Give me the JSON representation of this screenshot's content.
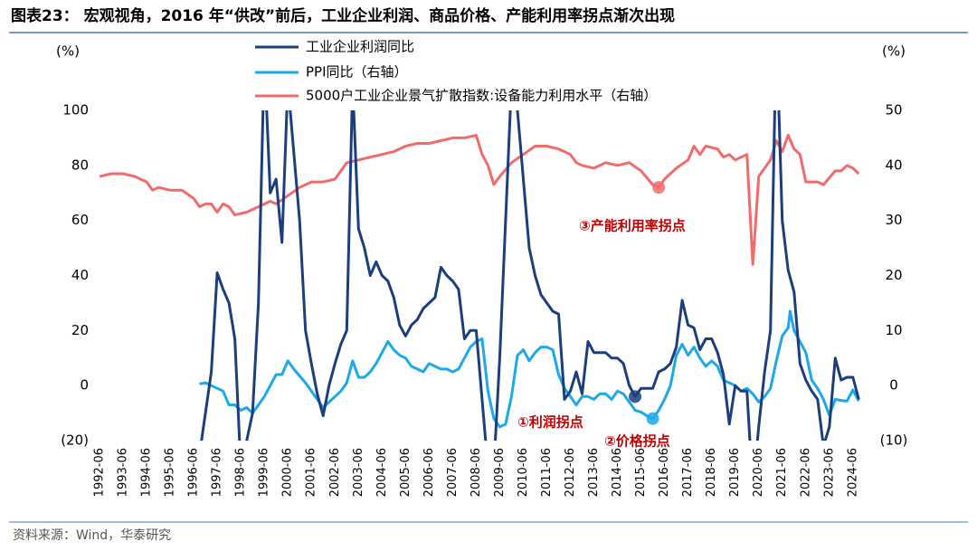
{
  "chart_data": {
    "type": "line",
    "title": "图表23： 宏观视角，2016 年“供改”前后，工业企业利润、商品价格、产能利用率拐点渐次出现",
    "source": "资料来源：Wind，华泰研究",
    "y_label": "(%)",
    "y2_label": "(%)",
    "xlim": [
      "1992-06",
      "2025-01"
    ],
    "xticks": [
      "1992-06",
      "1993-06",
      "1994-06",
      "1995-06",
      "1996-06",
      "1997-06",
      "1998-06",
      "1999-06",
      "2000-06",
      "2001-06",
      "2002-06",
      "2003-06",
      "2004-06",
      "2005-06",
      "2006-06",
      "2007-06",
      "2008-06",
      "2009-06",
      "2010-06",
      "2011-06",
      "2012-06",
      "2013-06",
      "2014-06",
      "2015-06",
      "2016-06",
      "2017-06",
      "2018-06",
      "2019-06",
      "2020-06",
      "2021-06",
      "2022-06",
      "2023-06",
      "2024-06"
    ],
    "ylim": [
      -20,
      100
    ],
    "yticks": [
      {
        "value": -20,
        "label": "(20)"
      },
      0,
      20,
      40,
      60,
      80,
      100
    ],
    "y2lim": [
      -10,
      50
    ],
    "y2ticks": [
      {
        "value": -10,
        "label": "(10)"
      },
      0,
      10,
      20,
      30,
      40,
      50
    ],
    "series": [
      {
        "name": "工业企业利润同比",
        "color": "#1c3f7c",
        "x": [
          "1996-09",
          "1996-12",
          "1997-03",
          "1997-06",
          "1997-09",
          "1997-12",
          "1998-03",
          "1998-06",
          "1998-12",
          "1999-03",
          "1999-06",
          "1999-09",
          "1999-12",
          "2000-03",
          "2000-06",
          "2000-09",
          "2000-12",
          "2001-03",
          "2001-06",
          "2001-09",
          "2001-12",
          "2002-03",
          "2002-06",
          "2002-09",
          "2002-12",
          "2003-03",
          "2003-06",
          "2003-09",
          "2003-12",
          "2004-03",
          "2004-06",
          "2004-09",
          "2004-12",
          "2005-03",
          "2005-06",
          "2005-09",
          "2005-12",
          "2006-03",
          "2006-06",
          "2006-09",
          "2006-12",
          "2007-03",
          "2007-06",
          "2007-09",
          "2007-12",
          "2008-03",
          "2008-06",
          "2008-09",
          "2008-12",
          "2009-03",
          "2009-06",
          "2009-09",
          "2009-12",
          "2010-03",
          "2010-06",
          "2010-09",
          "2010-12",
          "2011-03",
          "2011-06",
          "2011-09",
          "2011-12",
          "2012-03",
          "2012-06",
          "2012-09",
          "2012-12",
          "2013-03",
          "2013-06",
          "2013-09",
          "2013-12",
          "2014-03",
          "2014-06",
          "2014-09",
          "2014-12",
          "2015-03",
          "2015-06",
          "2015-09",
          "2015-12",
          "2016-03",
          "2016-06",
          "2016-09",
          "2016-12",
          "2017-03",
          "2017-06",
          "2017-09",
          "2017-12",
          "2018-03",
          "2018-06",
          "2018-09",
          "2018-12",
          "2019-03",
          "2019-06",
          "2019-09",
          "2019-12",
          "2020-03",
          "2020-06",
          "2020-09",
          "2020-12",
          "2021-03",
          "2021-06",
          "2021-09",
          "2021-12",
          "2022-03",
          "2022-06",
          "2022-09",
          "2022-12",
          "2023-03",
          "2023-06",
          "2023-09",
          "2023-12",
          "2024-03",
          "2024-06",
          "2024-09"
        ],
        "values": [
          -25,
          -10,
          5,
          41,
          35,
          30,
          17,
          -30,
          -10,
          30,
          120,
          70,
          75,
          52,
          110,
          85,
          60,
          20,
          8,
          -3,
          -11,
          0,
          8,
          15,
          20,
          110,
          57,
          50,
          40,
          45,
          40,
          38,
          32,
          22,
          18,
          22,
          24,
          28,
          30,
          32,
          43,
          40,
          38,
          35,
          17,
          20,
          20,
          -5,
          -30,
          -30,
          10,
          60,
          110,
          100,
          75,
          50,
          40,
          33,
          30,
          27,
          26,
          -5,
          -2,
          5,
          -3,
          16,
          12,
          12,
          12,
          10,
          10,
          8,
          0,
          -4,
          -1,
          -1,
          -1,
          5,
          6,
          8,
          14,
          31,
          22,
          21,
          13,
          17,
          17,
          12,
          4,
          -14,
          0,
          -2,
          -2,
          -38,
          -15,
          5,
          20,
          130,
          60,
          42,
          34,
          8,
          2,
          -2,
          -5,
          -22,
          -15,
          10,
          2,
          3,
          3,
          -5
        ]
      },
      {
        "name": "PPI同比（右轴）",
        "color": "#1ea8e8",
        "axis": "y2",
        "x": [
          "1996-09",
          "1996-12",
          "1997-03",
          "1997-06",
          "1997-09",
          "1997-12",
          "1998-03",
          "1998-06",
          "1998-09",
          "1998-12",
          "1999-03",
          "1999-06",
          "1999-09",
          "1999-12",
          "2000-03",
          "2000-06",
          "2000-09",
          "2001-03",
          "2001-06",
          "2001-09",
          "2001-12",
          "2002-03",
          "2002-06",
          "2002-09",
          "2002-12",
          "2003-03",
          "2003-06",
          "2003-09",
          "2003-12",
          "2004-03",
          "2004-06",
          "2004-09",
          "2004-12",
          "2005-03",
          "2005-06",
          "2005-09",
          "2005-12",
          "2006-03",
          "2006-06",
          "2006-09",
          "2006-12",
          "2007-03",
          "2007-06",
          "2007-09",
          "2007-12",
          "2008-03",
          "2008-06",
          "2008-09",
          "2008-12",
          "2009-03",
          "2009-06",
          "2009-09",
          "2009-12",
          "2010-03",
          "2010-06",
          "2010-09",
          "2010-12",
          "2011-03",
          "2011-06",
          "2011-09",
          "2011-12",
          "2012-03",
          "2012-06",
          "2012-09",
          "2012-12",
          "2013-03",
          "2013-06",
          "2013-09",
          "2013-12",
          "2014-03",
          "2014-06",
          "2014-09",
          "2014-12",
          "2015-03",
          "2015-06",
          "2015-09",
          "2015-12",
          "2016-03",
          "2016-06",
          "2016-09",
          "2016-12",
          "2017-03",
          "2017-06",
          "2017-09",
          "2017-12",
          "2018-03",
          "2018-06",
          "2018-09",
          "2018-12",
          "2019-03",
          "2019-06",
          "2019-09",
          "2019-12",
          "2020-03",
          "2020-06",
          "2020-09",
          "2020-12",
          "2021-03",
          "2021-06",
          "2021-09",
          "2021-10",
          "2021-12",
          "2022-03",
          "2022-06",
          "2022-09",
          "2022-12",
          "2023-03",
          "2023-06",
          "2023-09",
          "2023-12",
          "2024-03",
          "2024-06",
          "2024-09"
        ],
        "values": [
          0.3,
          0.5,
          0,
          -0.5,
          -1,
          -3.5,
          -3.5,
          -4.5,
          -4,
          -5,
          -3.5,
          -2,
          0,
          2,
          2,
          4.5,
          3,
          0.5,
          -1,
          -2.5,
          -4,
          -3,
          -2,
          -1,
          0.5,
          4.5,
          1.5,
          1.5,
          2.5,
          4,
          6,
          8,
          6.5,
          5.5,
          5,
          3.5,
          3,
          2.5,
          4,
          3.5,
          3,
          3,
          2.5,
          3,
          5,
          7,
          8,
          8.5,
          -1,
          -6,
          -7.5,
          -7,
          -2,
          5.5,
          6.5,
          4.5,
          6,
          7,
          7,
          6.5,
          2,
          -0.5,
          -2,
          -3.5,
          -2,
          -2,
          -2.5,
          -1.5,
          -1.5,
          -2.5,
          -1,
          -1.5,
          -3,
          -4.5,
          -4.8,
          -5.5,
          -6,
          -4.5,
          -2.5,
          0,
          5.5,
          7.5,
          5.5,
          7,
          5,
          3.5,
          4.5,
          3.5,
          1,
          0.5,
          0,
          -1,
          -0.5,
          -1.5,
          -3,
          -2,
          -0.5,
          4.5,
          9,
          10.5,
          13.5,
          10,
          8,
          6,
          1,
          -0.5,
          -2.5,
          -5.4,
          -2.5,
          -2.7,
          -2.8,
          -0.8,
          -2.8
        ]
      },
      {
        "name": "5000户工业企业景气扩散指数:设备能力利用水平（右轴）",
        "color": "#f26b6b",
        "axis": "y2",
        "x": [
          "1992-06",
          "1992-12",
          "1993-06",
          "1993-12",
          "1994-06",
          "1994-09",
          "1994-12",
          "1995-06",
          "1995-12",
          "1996-06",
          "1996-09",
          "1996-12",
          "1997-03",
          "1997-06",
          "1997-09",
          "1997-12",
          "1998-03",
          "1998-09",
          "1999-03",
          "1999-09",
          "1999-12",
          "2000-06",
          "2000-12",
          "2001-06",
          "2001-12",
          "2002-06",
          "2002-12",
          "2003-06",
          "2003-12",
          "2004-06",
          "2004-12",
          "2005-06",
          "2005-12",
          "2006-06",
          "2006-12",
          "2007-06",
          "2007-12",
          "2008-06",
          "2008-09",
          "2008-12",
          "2009-03",
          "2009-06",
          "2009-12",
          "2010-06",
          "2010-12",
          "2011-06",
          "2011-12",
          "2012-06",
          "2012-09",
          "2012-12",
          "2013-06",
          "2013-12",
          "2014-06",
          "2014-12",
          "2015-06",
          "2015-12",
          "2016-03",
          "2016-06",
          "2016-12",
          "2017-06",
          "2017-09",
          "2017-12",
          "2018-03",
          "2018-09",
          "2018-12",
          "2019-03",
          "2019-06",
          "2019-12",
          "2020-03",
          "2020-06",
          "2020-12",
          "2021-03",
          "2021-06",
          "2021-09",
          "2021-12",
          "2022-03",
          "2022-06",
          "2022-12",
          "2023-03",
          "2023-09",
          "2023-12",
          "2024-03",
          "2024-06",
          "2024-09"
        ],
        "values": [
          38,
          38.5,
          38.5,
          38,
          37,
          35.5,
          36,
          35.5,
          35.5,
          34,
          32.5,
          33,
          33,
          31.5,
          33,
          32.5,
          31,
          31.5,
          32.5,
          33.5,
          33,
          34.5,
          36,
          37,
          37,
          37.5,
          40.5,
          41,
          41.5,
          42,
          42.5,
          43.5,
          44,
          44,
          44.5,
          45,
          45,
          45.5,
          42,
          40,
          36.5,
          38,
          40.5,
          42,
          43.5,
          43.5,
          43,
          42,
          40.5,
          40,
          39.5,
          40.5,
          40,
          40.5,
          39,
          36.5,
          36,
          37.5,
          39.5,
          41,
          43.5,
          42,
          43.5,
          43,
          41.5,
          42,
          41,
          42,
          22,
          38,
          41,
          44.5,
          42.5,
          45.5,
          43,
          42,
          37,
          37,
          36.5,
          39,
          39,
          40,
          39.5,
          38.5
        ]
      }
    ],
    "annotations": [
      {
        "text": "①利润拐点",
        "series": 0,
        "point": "2015-03"
      },
      {
        "text": "②价格拐点",
        "series": 1,
        "point": "2015-12"
      },
      {
        "text": "③产能利用率拐点",
        "series": 2,
        "point": "2016-03"
      }
    ]
  }
}
